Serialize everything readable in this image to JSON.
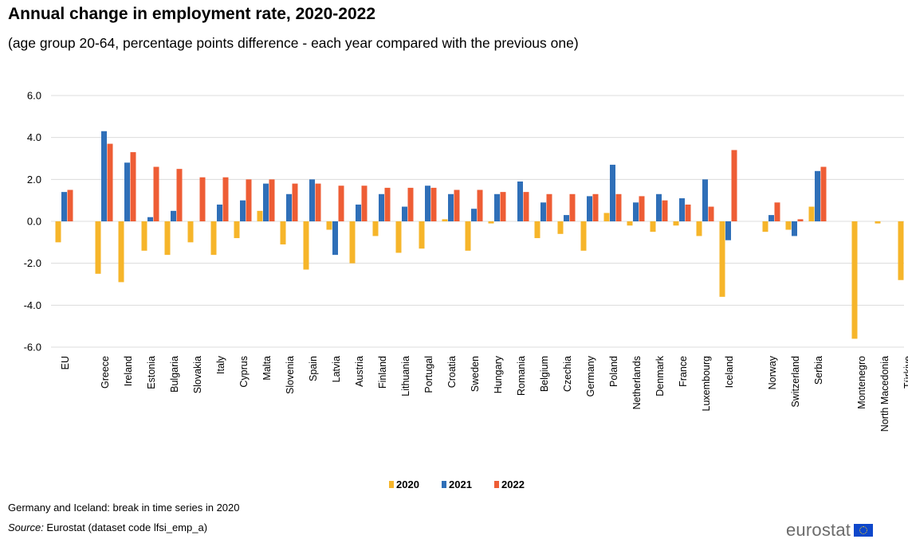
{
  "title": "Annual change in employment rate, 2020-2022",
  "subtitle": "(age group 20-64, percentage points difference - each year compared with the previous one)",
  "note": "Germany and Iceland: break in time series in 2020",
  "source_label": "Source:",
  "source_text": " Eurostat (dataset code lfsi_emp_a)",
  "logo_text": "eurostat",
  "colors": {
    "2020": "#f6b52a",
    "2021": "#2f6fb8",
    "2022": "#ee5d35",
    "grid": "#dcdcdc"
  },
  "chart_data": {
    "type": "bar",
    "title": "Annual change in employment rate, 2020-2022",
    "subtitle": "(age group 20-64, percentage points difference - each year compared with the previous one)",
    "xlabel": "",
    "ylabel": "",
    "ylim": [
      -6,
      6
    ],
    "yticks": [
      "6.0",
      "4.0",
      "2.0",
      "0.0",
      "-2.0",
      "-4.0",
      "-6.0"
    ],
    "grid": "horizontal",
    "legend_position": "bottom",
    "category_groups": [
      1,
      28,
      3,
      4
    ],
    "categories": [
      "EU",
      "Greece",
      "Ireland",
      "Estonia",
      "Bulgaria",
      "Slovakia",
      "Italy",
      "Cyprus",
      "Malta",
      "Slovenia",
      "Spain",
      "Latvia",
      "Austria",
      "Finland",
      "Lithuania",
      "Portugal",
      "Croatia",
      "Sweden",
      "Hungary",
      "Romania",
      "Belgium",
      "Czechia",
      "Germany",
      "Poland",
      "Netherlands",
      "Denmark",
      "France",
      "Luxembourg",
      "Iceland",
      "Norway",
      "Switzerland",
      "Serbia",
      "Montenegro",
      "North Macedonia",
      "Türkiye"
    ],
    "series": [
      {
        "name": "2020",
        "values": [
          -1.0,
          -2.5,
          -2.9,
          -1.4,
          -1.6,
          -1.0,
          -1.6,
          -0.8,
          0.5,
          -1.1,
          -2.3,
          -0.4,
          -2.0,
          -0.7,
          -1.5,
          -1.3,
          0.1,
          -1.4,
          -0.1,
          0.0,
          -0.8,
          -0.6,
          -1.4,
          0.4,
          -0.2,
          -0.5,
          -0.2,
          -0.7,
          -3.6,
          -0.5,
          -0.4,
          0.7,
          -5.6,
          -0.1,
          -2.8
        ]
      },
      {
        "name": "2021",
        "values": [
          1.4,
          4.3,
          2.8,
          0.2,
          0.5,
          0.0,
          0.8,
          1.0,
          1.8,
          1.3,
          2.0,
          -1.6,
          0.8,
          1.3,
          0.7,
          1.7,
          1.3,
          0.6,
          1.3,
          1.9,
          0.9,
          0.3,
          1.2,
          2.7,
          0.9,
          1.3,
          1.1,
          2.0,
          -0.9,
          0.3,
          -0.7,
          2.4,
          0.0,
          0.0,
          0.0
        ]
      },
      {
        "name": "2022",
        "values": [
          1.5,
          3.7,
          3.3,
          2.6,
          2.5,
          2.1,
          2.1,
          2.0,
          2.0,
          1.8,
          1.8,
          1.7,
          1.7,
          1.6,
          1.6,
          1.6,
          1.5,
          1.5,
          1.4,
          1.4,
          1.3,
          1.3,
          1.3,
          1.3,
          1.2,
          1.0,
          0.8,
          0.7,
          3.4,
          0.9,
          0.1,
          2.6,
          0.0,
          0.0,
          0.0
        ]
      }
    ]
  }
}
